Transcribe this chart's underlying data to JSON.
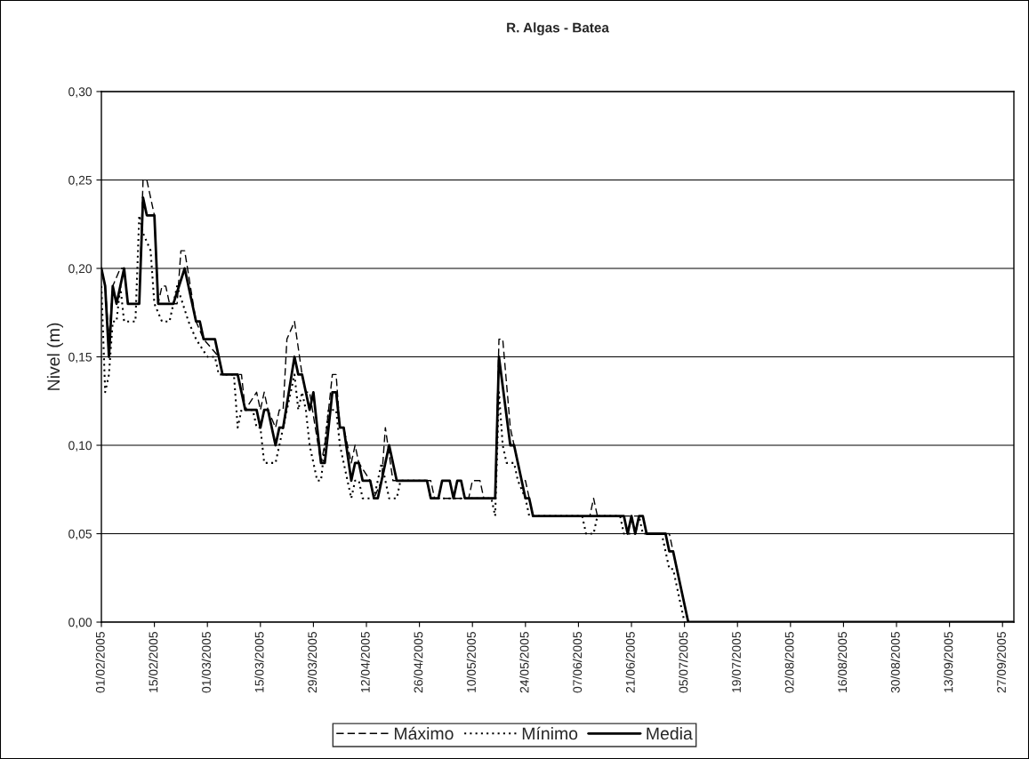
{
  "chart_data": {
    "type": "line",
    "title": "R. Algas - Batea",
    "ylabel": "Nivel (m)",
    "xlim": [
      "2005-02-01",
      "2005-09-30"
    ],
    "xticks": [
      {
        "value": "2005-02-01",
        "label": "01/02/2005"
      },
      {
        "value": "2005-02-15",
        "label": "15/02/2005"
      },
      {
        "value": "2005-03-01",
        "label": "01/03/2005"
      },
      {
        "value": "2005-03-15",
        "label": "15/03/2005"
      },
      {
        "value": "2005-03-29",
        "label": "29/03/2005"
      },
      {
        "value": "2005-04-12",
        "label": "12/04/2005"
      },
      {
        "value": "2005-04-26",
        "label": "26/04/2005"
      },
      {
        "value": "2005-05-10",
        "label": "10/05/2005"
      },
      {
        "value": "2005-05-24",
        "label": "24/05/2005"
      },
      {
        "value": "2005-06-07",
        "label": "07/06/2005"
      },
      {
        "value": "2005-06-21",
        "label": "21/06/2005"
      },
      {
        "value": "2005-07-05",
        "label": "05/07/2005"
      },
      {
        "value": "2005-07-19",
        "label": "19/07/2005"
      },
      {
        "value": "2005-08-02",
        "label": "02/08/2005"
      },
      {
        "value": "2005-08-16",
        "label": "16/08/2005"
      },
      {
        "value": "2005-08-30",
        "label": "30/08/2005"
      },
      {
        "value": "2005-09-13",
        "label": "13/09/2005"
      },
      {
        "value": "2005-09-27",
        "label": "27/09/2005"
      }
    ],
    "ylim": [
      0,
      0.3
    ],
    "yticks": [
      {
        "value": 0,
        "label": "0,00"
      },
      {
        "value": 0.05,
        "label": "0,05"
      },
      {
        "value": 0.1,
        "label": "0,10"
      },
      {
        "value": 0.15,
        "label": "0,15"
      },
      {
        "value": 0.2,
        "label": "0,20"
      },
      {
        "value": 0.25,
        "label": "0,25"
      },
      {
        "value": 0.3,
        "label": "0,30"
      }
    ],
    "grid": "y",
    "legend": "bottom",
    "marker": "none",
    "series": [
      {
        "name": "Máximo",
        "color": "#000000",
        "line_style": "dashed",
        "x": [
          "2005-02-01",
          "2005-02-02",
          "2005-02-03",
          "2005-02-04",
          "2005-02-06",
          "2005-02-07",
          "2005-02-08",
          "2005-02-11",
          "2005-02-12",
          "2005-02-13",
          "2005-02-15",
          "2005-02-16",
          "2005-02-17",
          "2005-02-18",
          "2005-02-19",
          "2005-02-21",
          "2005-02-22",
          "2005-02-23",
          "2005-02-26",
          "2005-02-28",
          "2005-03-04",
          "2005-03-05",
          "2005-03-10",
          "2005-03-11",
          "2005-03-14",
          "2005-03-15",
          "2005-03-16",
          "2005-03-17",
          "2005-03-19",
          "2005-03-20",
          "2005-03-21",
          "2005-03-22",
          "2005-03-24",
          "2005-03-26",
          "2005-03-27",
          "2005-03-28",
          "2005-03-31",
          "2005-04-01",
          "2005-04-03",
          "2005-04-04",
          "2005-04-05",
          "2005-04-06",
          "2005-04-08",
          "2005-04-09",
          "2005-04-10",
          "2005-04-13",
          "2005-04-14",
          "2005-04-16",
          "2005-04-17",
          "2005-04-19",
          "2005-04-29",
          "2005-04-30",
          "2005-05-09",
          "2005-05-10",
          "2005-05-12",
          "2005-05-13",
          "2005-05-16",
          "2005-05-17",
          "2005-05-18",
          "2005-05-20",
          "2005-05-22",
          "2005-05-23",
          "2005-05-24",
          "2005-05-25",
          "2005-05-26",
          "2005-06-10",
          "2005-06-11",
          "2005-06-12",
          "2005-06-24",
          "2005-06-25",
          "2005-07-01",
          "2005-07-02",
          "2005-07-05",
          "2005-07-06",
          "2005-09-30"
        ],
        "values": [
          0.2,
          0.19,
          0.16,
          0.19,
          0.2,
          0.2,
          0.18,
          0.18,
          0.25,
          0.25,
          0.23,
          0.18,
          0.19,
          0.19,
          0.18,
          0.18,
          0.21,
          0.21,
          0.17,
          0.16,
          0.15,
          0.14,
          0.14,
          0.12,
          0.13,
          0.12,
          0.13,
          0.12,
          0.11,
          0.12,
          0.12,
          0.16,
          0.17,
          0.14,
          0.13,
          0.13,
          0.09,
          0.1,
          0.14,
          0.14,
          0.11,
          0.11,
          0.09,
          0.1,
          0.09,
          0.08,
          0.07,
          0.08,
          0.11,
          0.08,
          0.08,
          0.07,
          0.07,
          0.08,
          0.08,
          0.07,
          0.07,
          0.16,
          0.16,
          0.11,
          0.09,
          0.08,
          0.08,
          0.07,
          0.06,
          0.06,
          0.07,
          0.06,
          0.06,
          0.05,
          0.05,
          0.04,
          0.01,
          0.0,
          0.0
        ]
      },
      {
        "name": "Mínimo",
        "color": "#000000",
        "line_style": "dotted",
        "x": [
          "2005-02-01",
          "2005-02-02",
          "2005-02-03",
          "2005-02-04",
          "2005-02-05",
          "2005-02-06",
          "2005-02-07",
          "2005-02-10",
          "2005-02-11",
          "2005-02-12",
          "2005-02-14",
          "2005-02-15",
          "2005-02-17",
          "2005-02-19",
          "2005-02-21",
          "2005-02-24",
          "2005-02-26",
          "2005-03-01",
          "2005-03-03",
          "2005-03-04",
          "2005-03-08",
          "2005-03-09",
          "2005-03-10",
          "2005-03-13",
          "2005-03-14",
          "2005-03-15",
          "2005-03-16",
          "2005-03-19",
          "2005-03-20",
          "2005-03-22",
          "2005-03-24",
          "2005-03-25",
          "2005-03-26",
          "2005-03-27",
          "2005-03-28",
          "2005-03-29",
          "2005-03-30",
          "2005-03-31",
          "2005-04-02",
          "2005-04-04",
          "2005-04-05",
          "2005-04-07",
          "2005-04-08",
          "2005-04-09",
          "2005-04-10",
          "2005-04-11",
          "2005-04-14",
          "2005-04-16",
          "2005-04-17",
          "2005-04-18",
          "2005-04-20",
          "2005-04-21",
          "2005-04-28",
          "2005-04-29",
          "2005-05-15",
          "2005-05-16",
          "2005-05-17",
          "2005-05-18",
          "2005-05-19",
          "2005-05-21",
          "2005-05-22",
          "2005-05-24",
          "2005-05-25",
          "2005-06-08",
          "2005-06-09",
          "2005-06-11",
          "2005-06-12",
          "2005-06-18",
          "2005-06-19",
          "2005-06-22",
          "2005-06-23",
          "2005-06-24",
          "2005-06-29",
          "2005-06-30",
          "2005-07-01",
          "2005-07-02",
          "2005-07-04",
          "2005-07-05",
          "2005-09-30"
        ],
        "values": [
          0.19,
          0.13,
          0.14,
          0.17,
          0.17,
          0.19,
          0.17,
          0.17,
          0.23,
          0.22,
          0.21,
          0.18,
          0.17,
          0.17,
          0.19,
          0.17,
          0.16,
          0.15,
          0.15,
          0.14,
          0.14,
          0.11,
          0.12,
          0.12,
          0.11,
          0.11,
          0.09,
          0.09,
          0.1,
          0.12,
          0.14,
          0.12,
          0.13,
          0.12,
          0.1,
          0.09,
          0.08,
          0.08,
          0.12,
          0.12,
          0.1,
          0.08,
          0.07,
          0.08,
          0.08,
          0.07,
          0.07,
          0.09,
          0.08,
          0.07,
          0.07,
          0.08,
          0.08,
          0.07,
          0.07,
          0.06,
          0.13,
          0.1,
          0.09,
          0.09,
          0.08,
          0.07,
          0.06,
          0.06,
          0.05,
          0.05,
          0.06,
          0.06,
          0.05,
          0.05,
          0.06,
          0.05,
          0.05,
          0.04,
          0.03,
          0.03,
          0.01,
          0.0,
          0.0
        ]
      },
      {
        "name": "Media",
        "color": "#000000",
        "line_style": "solid",
        "x": [
          "2005-02-01",
          "2005-02-02",
          "2005-02-03",
          "2005-02-04",
          "2005-02-05",
          "2005-02-07",
          "2005-02-08",
          "2005-02-11",
          "2005-02-12",
          "2005-02-13",
          "2005-02-15",
          "2005-02-16",
          "2005-02-20",
          "2005-02-23",
          "2005-02-26",
          "2005-02-27",
          "2005-02-28",
          "2005-03-03",
          "2005-03-04",
          "2005-03-05",
          "2005-03-09",
          "2005-03-10",
          "2005-03-11",
          "2005-03-14",
          "2005-03-15",
          "2005-03-16",
          "2005-03-17",
          "2005-03-19",
          "2005-03-20",
          "2005-03-21",
          "2005-03-24",
          "2005-03-25",
          "2005-03-26",
          "2005-03-27",
          "2005-03-28",
          "2005-03-29",
          "2005-03-31",
          "2005-04-01",
          "2005-04-03",
          "2005-04-04",
          "2005-04-05",
          "2005-04-06",
          "2005-04-08",
          "2005-04-09",
          "2005-04-10",
          "2005-04-11",
          "2005-04-13",
          "2005-04-14",
          "2005-04-15",
          "2005-04-18",
          "2005-04-20",
          "2005-04-28",
          "2005-04-29",
          "2005-05-01",
          "2005-05-02",
          "2005-05-04",
          "2005-05-05",
          "2005-05-06",
          "2005-05-07",
          "2005-05-08",
          "2005-05-16",
          "2005-05-17",
          "2005-05-20",
          "2005-05-21",
          "2005-05-22",
          "2005-05-23",
          "2005-05-24",
          "2005-05-25",
          "2005-05-26",
          "2005-06-19",
          "2005-06-20",
          "2005-06-21",
          "2005-06-22",
          "2005-06-23",
          "2005-06-24",
          "2005-06-25",
          "2005-06-30",
          "2005-07-01",
          "2005-07-02",
          "2005-07-03",
          "2005-07-04",
          "2005-07-06",
          "2005-09-30"
        ],
        "values": [
          0.2,
          0.19,
          0.15,
          0.19,
          0.18,
          0.2,
          0.18,
          0.18,
          0.24,
          0.23,
          0.23,
          0.18,
          0.18,
          0.2,
          0.17,
          0.17,
          0.16,
          0.16,
          0.15,
          0.14,
          0.14,
          0.13,
          0.12,
          0.12,
          0.11,
          0.12,
          0.12,
          0.1,
          0.11,
          0.11,
          0.15,
          0.14,
          0.14,
          0.13,
          0.12,
          0.13,
          0.09,
          0.09,
          0.13,
          0.13,
          0.11,
          0.11,
          0.08,
          0.09,
          0.09,
          0.08,
          0.08,
          0.07,
          0.07,
          0.1,
          0.08,
          0.08,
          0.07,
          0.07,
          0.08,
          0.08,
          0.07,
          0.08,
          0.08,
          0.07,
          0.07,
          0.15,
          0.1,
          0.1,
          0.09,
          0.08,
          0.07,
          0.07,
          0.06,
          0.06,
          0.05,
          0.06,
          0.05,
          0.06,
          0.06,
          0.05,
          0.05,
          0.04,
          0.04,
          0.03,
          0.02,
          0.0,
          0.0
        ]
      }
    ]
  }
}
